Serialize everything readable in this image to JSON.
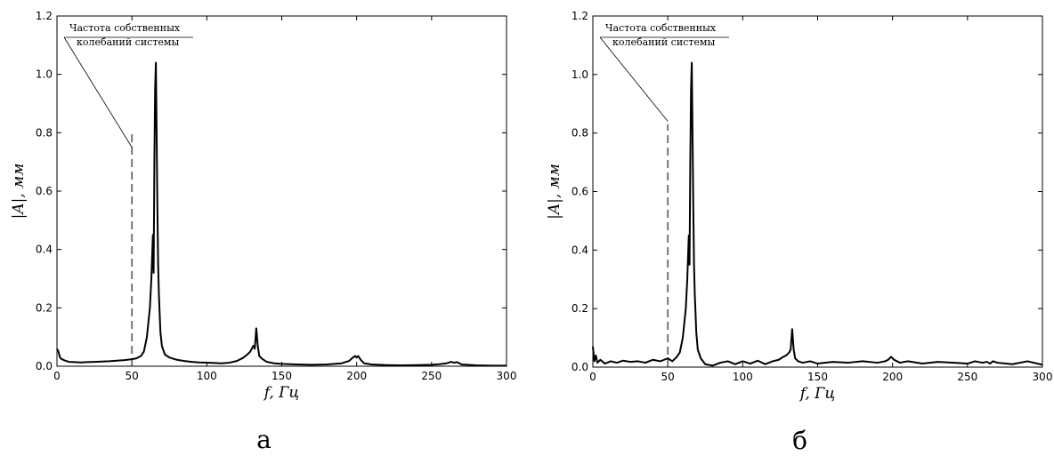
{
  "chart_data": [
    {
      "type": "line",
      "panel_label": "а",
      "xlabel": "f, Гц",
      "ylabel": "|A|, мм",
      "color": "#000000",
      "xlim": [
        0,
        300
      ],
      "ylim": [
        0,
        1.2
      ],
      "xticks": [
        0,
        50,
        100,
        150,
        200,
        250,
        300
      ],
      "yticks": [
        {
          "value": 0,
          "label": "0.0"
        },
        0.2,
        0.4,
        0.6,
        0.8,
        {
          "value": 1,
          "label": "1.0"
        },
        1.2
      ],
      "vline": {
        "x": 50,
        "top": 0.8
      },
      "annotation": {
        "lines": [
          "Частота собственных",
          "колебаний системы"
        ],
        "x": 50,
        "y": 0.75
      },
      "x": [
        0,
        1,
        2,
        3,
        5,
        8,
        12,
        16,
        20,
        25,
        30,
        35,
        40,
        45,
        50,
        53,
        56,
        58,
        60,
        61,
        62,
        63,
        64,
        64.5,
        65,
        65.5,
        66,
        66.5,
        67,
        67.5,
        68,
        69,
        70,
        72,
        75,
        80,
        85,
        90,
        95,
        100,
        105,
        110,
        115,
        120,
        124,
        127,
        129,
        131,
        132,
        133,
        134,
        135,
        137,
        140,
        145,
        150,
        160,
        170,
        180,
        190,
        195,
        197,
        199,
        200,
        201,
        203,
        205,
        210,
        220,
        230,
        240,
        250,
        255,
        260,
        263,
        265,
        267,
        270,
        280,
        290,
        300
      ],
      "values": [
        0.06,
        0.05,
        0.03,
        0.025,
        0.02,
        0.015,
        0.014,
        0.013,
        0.014,
        0.015,
        0.016,
        0.017,
        0.019,
        0.021,
        0.024,
        0.027,
        0.035,
        0.05,
        0.1,
        0.15,
        0.2,
        0.3,
        0.45,
        0.32,
        0.7,
        0.95,
        1.04,
        0.8,
        0.55,
        0.35,
        0.25,
        0.12,
        0.07,
        0.04,
        0.03,
        0.022,
        0.018,
        0.015,
        0.013,
        0.012,
        0.011,
        0.01,
        0.012,
        0.018,
        0.028,
        0.04,
        0.05,
        0.07,
        0.06,
        0.13,
        0.07,
        0.035,
        0.025,
        0.015,
        0.01,
        0.008,
        0.006,
        0.005,
        0.006,
        0.01,
        0.018,
        0.028,
        0.035,
        0.03,
        0.035,
        0.02,
        0.01,
        0.006,
        0.004,
        0.003,
        0.004,
        0.005,
        0.007,
        0.01,
        0.015,
        0.012,
        0.014,
        0.006,
        0.003,
        0.002,
        0.002
      ]
    },
    {
      "type": "line",
      "panel_label": "б",
      "xlabel": "f, Гц",
      "ylabel": "|A|, мм",
      "color": "#000000",
      "xlim": [
        0,
        300
      ],
      "ylim": [
        0,
        1.2
      ],
      "xticks": [
        0,
        50,
        100,
        150,
        200,
        250,
        300
      ],
      "yticks": [
        {
          "value": 0,
          "label": "0.0"
        },
        0.2,
        0.4,
        0.6,
        0.8,
        {
          "value": 1,
          "label": "1.0"
        },
        1.2
      ],
      "vline": {
        "x": 50,
        "top": 0.83
      },
      "annotation": {
        "lines": [
          "Частота собственных",
          "колебаний системы"
        ],
        "x": 50,
        "y": 0.84
      },
      "x": [
        0,
        1,
        2,
        3,
        5,
        8,
        12,
        16,
        20,
        25,
        30,
        35,
        40,
        45,
        50,
        53,
        56,
        58,
        60,
        61,
        62,
        63,
        64,
        64.5,
        65,
        65.5,
        66,
        66.5,
        67,
        67.5,
        68,
        69,
        70,
        72,
        75,
        80,
        85,
        90,
        95,
        100,
        105,
        110,
        115,
        120,
        124,
        127,
        129,
        131,
        132,
        133,
        134,
        135,
        137,
        140,
        145,
        150,
        160,
        170,
        180,
        190,
        195,
        197,
        199,
        200,
        201,
        203,
        205,
        210,
        220,
        230,
        240,
        250,
        255,
        260,
        263,
        265,
        267,
        270,
        280,
        290,
        300
      ],
      "values": [
        0.07,
        0.02,
        0.04,
        0.015,
        0.025,
        0.012,
        0.02,
        0.015,
        0.022,
        0.018,
        0.02,
        0.015,
        0.025,
        0.02,
        0.03,
        0.02,
        0.035,
        0.05,
        0.1,
        0.15,
        0.2,
        0.3,
        0.45,
        0.35,
        0.7,
        0.95,
        1.04,
        0.8,
        0.55,
        0.35,
        0.25,
        0.12,
        0.06,
        0.03,
        0.01,
        0.005,
        0.015,
        0.02,
        0.01,
        0.02,
        0.012,
        0.022,
        0.01,
        0.02,
        0.025,
        0.035,
        0.04,
        0.05,
        0.06,
        0.13,
        0.06,
        0.03,
        0.02,
        0.015,
        0.02,
        0.012,
        0.018,
        0.015,
        0.02,
        0.015,
        0.02,
        0.025,
        0.035,
        0.03,
        0.025,
        0.02,
        0.015,
        0.02,
        0.012,
        0.018,
        0.015,
        0.012,
        0.02,
        0.015,
        0.018,
        0.012,
        0.02,
        0.015,
        0.01,
        0.02,
        0.008
      ]
    }
  ]
}
